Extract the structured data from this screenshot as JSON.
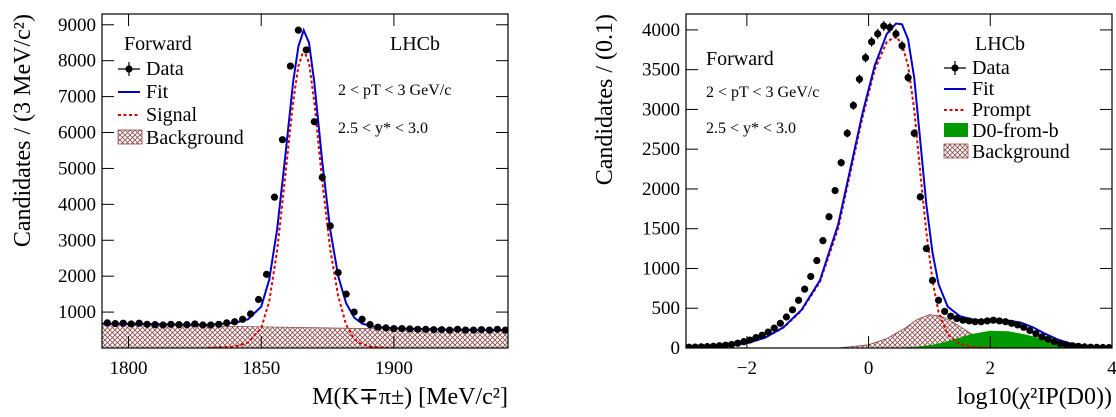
{
  "colors": {
    "data": "#000000",
    "fit": "#0000cc",
    "signal": "#dd0000",
    "background": "#8b4a4a",
    "fromb": "#009900"
  },
  "chart_data": [
    {
      "type": "line",
      "xlabel": "M(K∓π±) [MeV/c²]",
      "ylabel": "Candidates / (3 MeV/c²)",
      "xlim": [
        1790,
        1943
      ],
      "ylim": [
        0,
        9300
      ],
      "xticks": [
        "1800",
        "1850",
        "1900"
      ],
      "xtick_values": [
        1800,
        1850,
        1900
      ],
      "yticks": [
        "1000",
        "2000",
        "3000",
        "4000",
        "5000",
        "6000",
        "7000",
        "8000",
        "9000"
      ],
      "ytick_values": [
        1000,
        2000,
        3000,
        4000,
        5000,
        6000,
        7000,
        8000,
        9000
      ],
      "labels": {
        "region": "Forward",
        "experiment": "LHCb",
        "pt": "2 < pT < 3 GeV/c",
        "y": "2.5 < y* < 3.0"
      },
      "legend": [
        "Data",
        "Fit",
        "Signal",
        "Background"
      ],
      "series": [
        {
          "name": "Data",
          "x": [
            1792,
            1795,
            1798,
            1801,
            1804,
            1807,
            1810,
            1813,
            1816,
            1819,
            1822,
            1825,
            1828,
            1831,
            1834,
            1837,
            1840,
            1843,
            1846,
            1849,
            1852,
            1855,
            1858,
            1861,
            1864,
            1867,
            1870,
            1873,
            1876,
            1879,
            1882,
            1885,
            1888,
            1891,
            1894,
            1897,
            1900,
            1903,
            1906,
            1909,
            1912,
            1915,
            1918,
            1921,
            1924,
            1927,
            1930,
            1933,
            1936,
            1939,
            1942
          ],
          "y": [
            700,
            680,
            690,
            670,
            690,
            660,
            650,
            640,
            660,
            650,
            650,
            670,
            640,
            640,
            660,
            700,
            730,
            800,
            950,
            1350,
            2050,
            4200,
            5800,
            7850,
            8850,
            8300,
            6300,
            4750,
            3400,
            2100,
            1500,
            1000,
            800,
            650,
            580,
            560,
            540,
            540,
            530,
            520,
            520,
            510,
            510,
            500,
            520,
            500,
            500,
            510,
            500,
            520,
            500
          ]
        },
        {
          "name": "Fit",
          "x": [
            1790,
            1800,
            1810,
            1820,
            1830,
            1840,
            1845,
            1850,
            1853,
            1856,
            1859,
            1862,
            1864,
            1866,
            1868,
            1870,
            1873,
            1876,
            1879,
            1882,
            1885,
            1888,
            1892,
            1896,
            1900,
            1910,
            1920,
            1930,
            1943
          ],
          "y": [
            680,
            675,
            665,
            655,
            650,
            700,
            800,
            1150,
            1900,
            3300,
            5300,
            7400,
            8400,
            8850,
            8500,
            7400,
            5200,
            3300,
            2000,
            1250,
            850,
            680,
            600,
            570,
            550,
            530,
            515,
            505,
            500
          ]
        },
        {
          "name": "Signal",
          "x": [
            1830,
            1840,
            1845,
            1850,
            1853,
            1856,
            1859,
            1862,
            1864,
            1866,
            1868,
            1870,
            1873,
            1876,
            1879,
            1882,
            1885,
            1888,
            1892,
            1896,
            1900
          ],
          "y": [
            0,
            40,
            150,
            550,
            1300,
            2700,
            4750,
            6850,
            7850,
            8300,
            7950,
            6850,
            4650,
            2750,
            1450,
            650,
            250,
            100,
            30,
            10,
            0
          ]
        },
        {
          "name": "Background",
          "x": [
            1790,
            1943
          ],
          "y": [
            660,
            480
          ]
        }
      ]
    },
    {
      "type": "line",
      "xlabel": "log10(χ²IP(D0))",
      "ylabel": "Candidates / (0.1)",
      "xlim": [
        -3,
        4
      ],
      "ylim": [
        0,
        4200
      ],
      "xticks": [
        "−2",
        "0",
        "2",
        "4"
      ],
      "xtick_values": [
        -2,
        0,
        2,
        4
      ],
      "yticks": [
        "0",
        "500",
        "1000",
        "1500",
        "2000",
        "2500",
        "3000",
        "3500",
        "4000"
      ],
      "ytick_values": [
        0,
        500,
        1000,
        1500,
        2000,
        2500,
        3000,
        3500,
        4000
      ],
      "labels": {
        "region": "Forward",
        "experiment": "LHCb",
        "pt": "2 < pT < 3 GeV/c",
        "y": "2.5 < y* < 3.0"
      },
      "legend": [
        "Data",
        "Fit",
        "Prompt",
        "D0-from-b",
        "Background"
      ],
      "series": [
        {
          "name": "Data",
          "x": [
            -2.95,
            -2.85,
            -2.75,
            -2.65,
            -2.55,
            -2.45,
            -2.35,
            -2.25,
            -2.15,
            -2.05,
            -1.95,
            -1.85,
            -1.75,
            -1.65,
            -1.55,
            -1.45,
            -1.35,
            -1.25,
            -1.15,
            -1.05,
            -0.95,
            -0.85,
            -0.75,
            -0.65,
            -0.55,
            -0.45,
            -0.35,
            -0.25,
            -0.15,
            -0.05,
            0.05,
            0.15,
            0.25,
            0.35,
            0.45,
            0.55,
            0.65,
            0.75,
            0.85,
            0.95,
            1.05,
            1.15,
            1.25,
            1.35,
            1.45,
            1.55,
            1.65,
            1.75,
            1.85,
            1.95,
            2.05,
            2.15,
            2.25,
            2.35,
            2.45,
            2.55,
            2.65,
            2.75,
            2.85,
            2.95,
            3.05,
            3.15,
            3.25,
            3.35,
            3.45,
            3.55,
            3.65,
            3.75,
            3.85,
            3.95
          ],
          "y": [
            10,
            12,
            15,
            18,
            22,
            28,
            35,
            45,
            60,
            80,
            100,
            130,
            160,
            200,
            250,
            310,
            390,
            480,
            600,
            740,
            900,
            1100,
            1350,
            1650,
            1980,
            2330,
            2700,
            3050,
            3380,
            3650,
            3850,
            3950,
            4050,
            4030,
            3950,
            3800,
            3400,
            2700,
            1900,
            1250,
            850,
            600,
            460,
            400,
            370,
            350,
            340,
            330,
            330,
            340,
            350,
            340,
            330,
            310,
            290,
            260,
            220,
            180,
            140,
            110,
            80,
            55,
            40,
            28,
            20,
            14,
            10,
            8,
            6,
            5
          ]
        },
        {
          "name": "Fit",
          "x": [
            -3,
            -2.5,
            -2,
            -1.7,
            -1.4,
            -1.1,
            -0.8,
            -0.5,
            -0.3,
            -0.1,
            0.1,
            0.3,
            0.45,
            0.55,
            0.65,
            0.75,
            0.85,
            0.95,
            1.05,
            1.15,
            1.3,
            1.5,
            1.7,
            1.9,
            2.1,
            2.3,
            2.5,
            2.7,
            2.9,
            3.1,
            3.3,
            3.6,
            4
          ],
          "y": [
            5,
            20,
            60,
            130,
            260,
            480,
            850,
            1550,
            2250,
            2950,
            3550,
            3950,
            4080,
            4070,
            3880,
            3400,
            2600,
            1800,
            1200,
            800,
            520,
            400,
            360,
            345,
            350,
            345,
            320,
            260,
            180,
            110,
            60,
            20,
            5
          ]
        },
        {
          "name": "Prompt",
          "x": [
            -3,
            -2.5,
            -2,
            -1.7,
            -1.4,
            -1.1,
            -0.8,
            -0.5,
            -0.3,
            -0.1,
            0.1,
            0.3,
            0.45,
            0.55,
            0.65,
            0.75,
            0.85,
            0.95,
            1.05,
            1.15,
            1.3,
            1.5,
            1.7,
            1.9,
            2.1
          ],
          "y": [
            5,
            20,
            60,
            130,
            255,
            470,
            830,
            1500,
            2200,
            2900,
            3500,
            3850,
            3920,
            3820,
            3550,
            3000,
            2200,
            1450,
            850,
            450,
            170,
            50,
            15,
            5,
            0
          ]
        },
        {
          "name": "D0-from-b",
          "x": [
            0.5,
            0.8,
            1.1,
            1.4,
            1.7,
            2.0,
            2.3,
            2.6,
            2.9,
            3.2,
            3.5,
            4.0
          ],
          "y": [
            0,
            10,
            40,
            100,
            170,
            210,
            205,
            160,
            100,
            50,
            20,
            0
          ]
        },
        {
          "name": "Background",
          "x": [
            -0.5,
            0,
            0.3,
            0.6,
            0.8,
            1.0,
            1.2,
            1.4,
            1.6,
            1.8,
            2.0,
            2.3,
            2.6
          ],
          "y": [
            0,
            40,
            120,
            250,
            360,
            420,
            400,
            320,
            220,
            130,
            70,
            20,
            0
          ]
        }
      ]
    }
  ]
}
